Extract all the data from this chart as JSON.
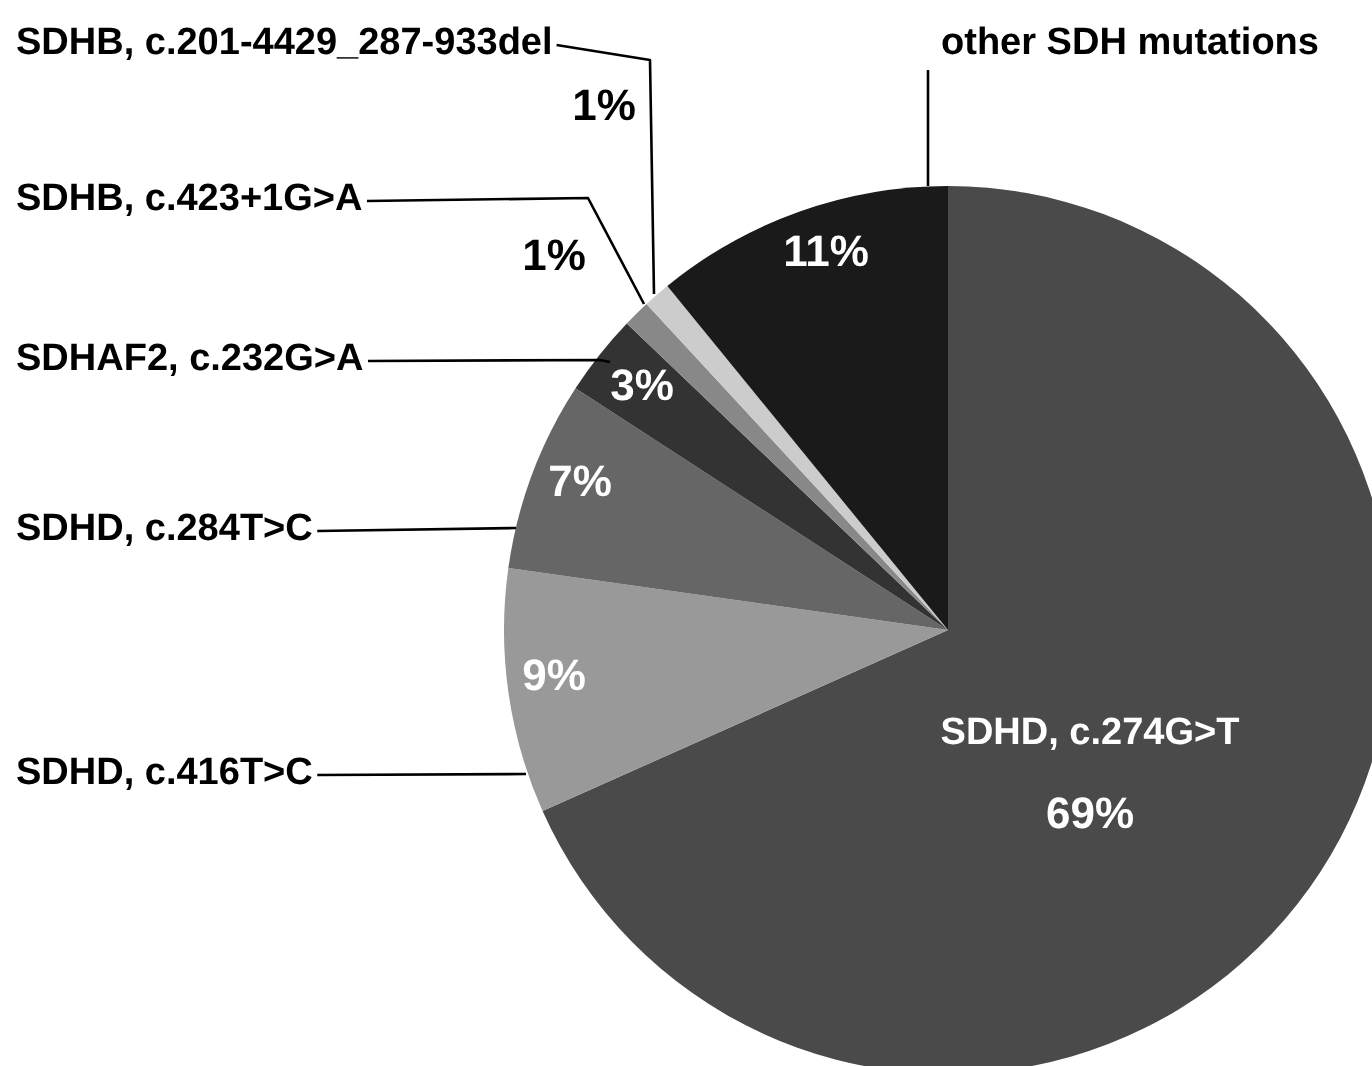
{
  "chart_data": {
    "type": "pie",
    "categories": [
      "SDHD, c.274G>T",
      "SDHD, c.416T>C",
      "SDHD, c.284T>C",
      "SDHAF2, c.232G>A",
      "SDHB, c.423+1G>A",
      "SDHB, c.201-4429_287-933del",
      "other SDH mutations"
    ],
    "values": [
      69,
      9,
      7,
      3,
      1,
      1,
      11
    ],
    "value_labels": [
      "69%",
      "9%",
      "7%",
      "3%",
      "1%",
      "1%",
      "11%"
    ],
    "colors": [
      "#4a4a4a",
      "#999999",
      "#666666",
      "#333333",
      "#888888",
      "#cccccc",
      "#1a1a1a"
    ]
  }
}
